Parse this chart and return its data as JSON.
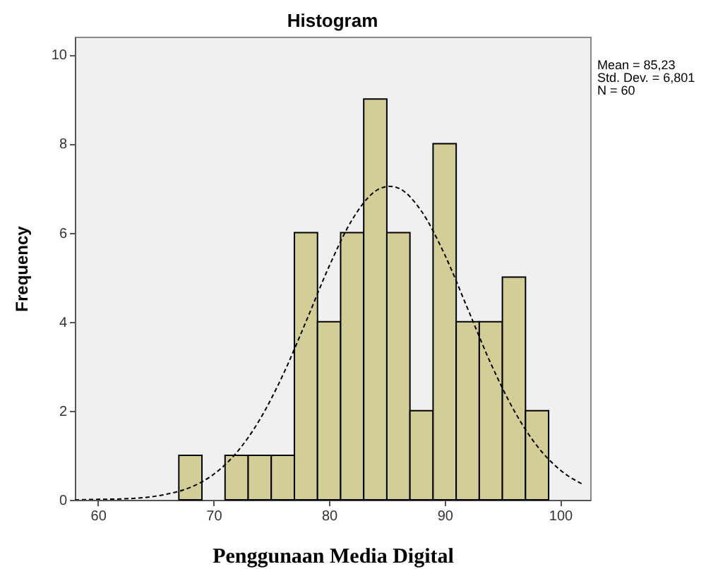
{
  "chart_data": {
    "type": "histogram",
    "title": "Histogram",
    "xlabel": "Penggunaan Media Digital",
    "ylabel": "Frequency",
    "bins": [
      67,
      69,
      71,
      73,
      75,
      77,
      79,
      81,
      83,
      85,
      87,
      89,
      91,
      93,
      95,
      97,
      99
    ],
    "values": [
      1,
      0,
      1,
      1,
      1,
      6,
      4,
      6,
      9,
      6,
      2,
      8,
      4,
      4,
      5,
      2
    ],
    "color": "#d3ce97",
    "series": [
      {
        "type": "line",
        "color": "#000000",
        "line_style": "dashed",
        "x": [
          58,
          60,
          62,
          64,
          66,
          68,
          70,
          72,
          74,
          76,
          78,
          80,
          82,
          84,
          85.23,
          86,
          88,
          90,
          92,
          94,
          96,
          98,
          100,
          102
        ],
        "values": [
          0.0,
          0.01,
          0.02,
          0.05,
          0.13,
          0.28,
          0.57,
          1.06,
          1.8,
          2.8,
          4.0,
          5.24,
          6.29,
          6.93,
          7.04,
          7.0,
          6.48,
          5.51,
          4.29,
          3.06,
          2.01,
          1.21,
          0.67,
          0.34
        ]
      }
    ],
    "xlim": [
      58,
      102.6
    ],
    "xticks": [
      60,
      70,
      80,
      90,
      100
    ],
    "ylim": [
      0,
      10.4
    ],
    "yticks": [
      0,
      2,
      4,
      6,
      8,
      10
    ],
    "grid": false,
    "annotations": [
      "Mean = 85,23",
      "Std. Dev. = 6,801",
      "N = 60"
    ]
  }
}
